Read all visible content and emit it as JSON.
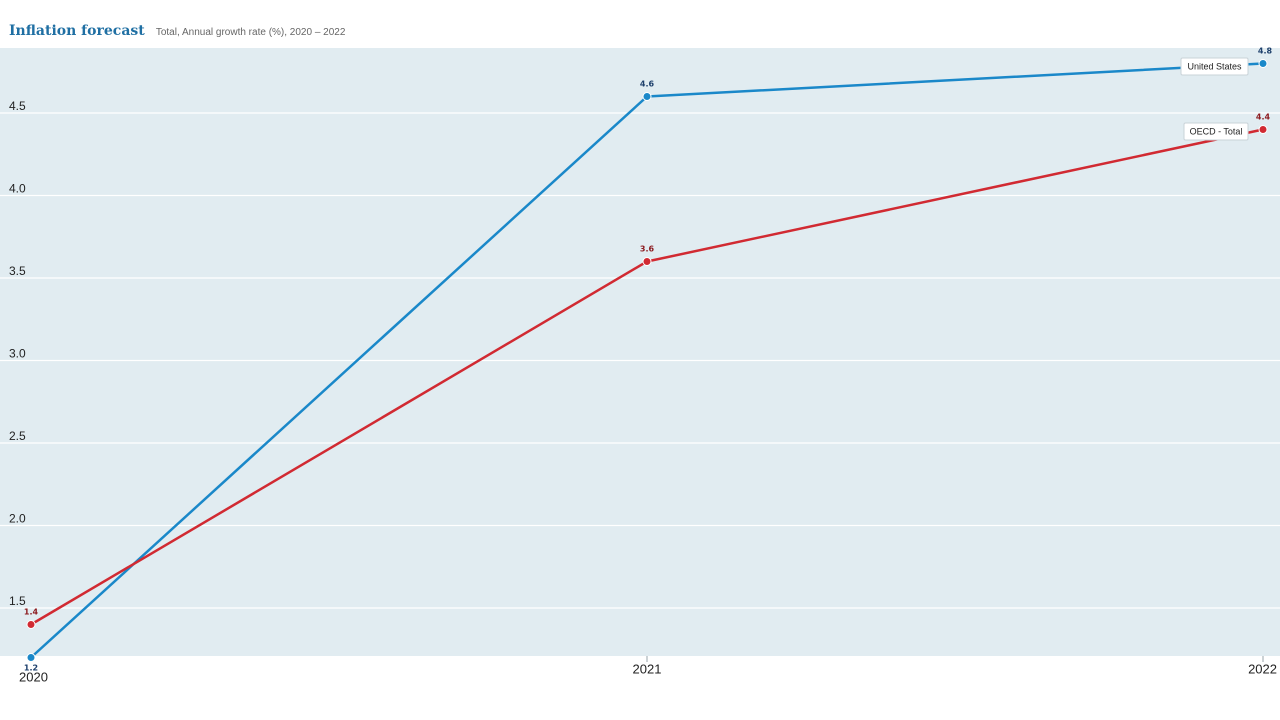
{
  "header": {
    "title": "Inflation forecast",
    "subtitle": "Total, Annual growth rate (%), 2020 – 2022"
  },
  "chart_data": {
    "type": "line",
    "title": "Inflation forecast",
    "subtitle": "Total, Annual growth rate (%), 2020 – 2022",
    "x": [
      "2020",
      "2021",
      "2022"
    ],
    "y_ticks": [
      "1.5",
      "2.0",
      "2.5",
      "3.0",
      "3.5",
      "4.0",
      "4.5"
    ],
    "ylim": [
      1.2,
      4.85
    ],
    "grid": true,
    "legend": "inline labels at line ends",
    "series": [
      {
        "name": "United States",
        "values": [
          1.2,
          4.6,
          4.8
        ],
        "labels": [
          "1.2",
          "4.6",
          "4.8"
        ],
        "color": "#1a88c9"
      },
      {
        "name": "OECD - Total",
        "values": [
          1.4,
          3.6,
          4.4
        ],
        "labels": [
          "1.4",
          "3.6",
          "4.4"
        ],
        "color": "#d12a32"
      }
    ]
  },
  "colors": {
    "plot_background": "#e1ecf1",
    "grid": "#ffffff",
    "title": "#1f6fa3"
  }
}
